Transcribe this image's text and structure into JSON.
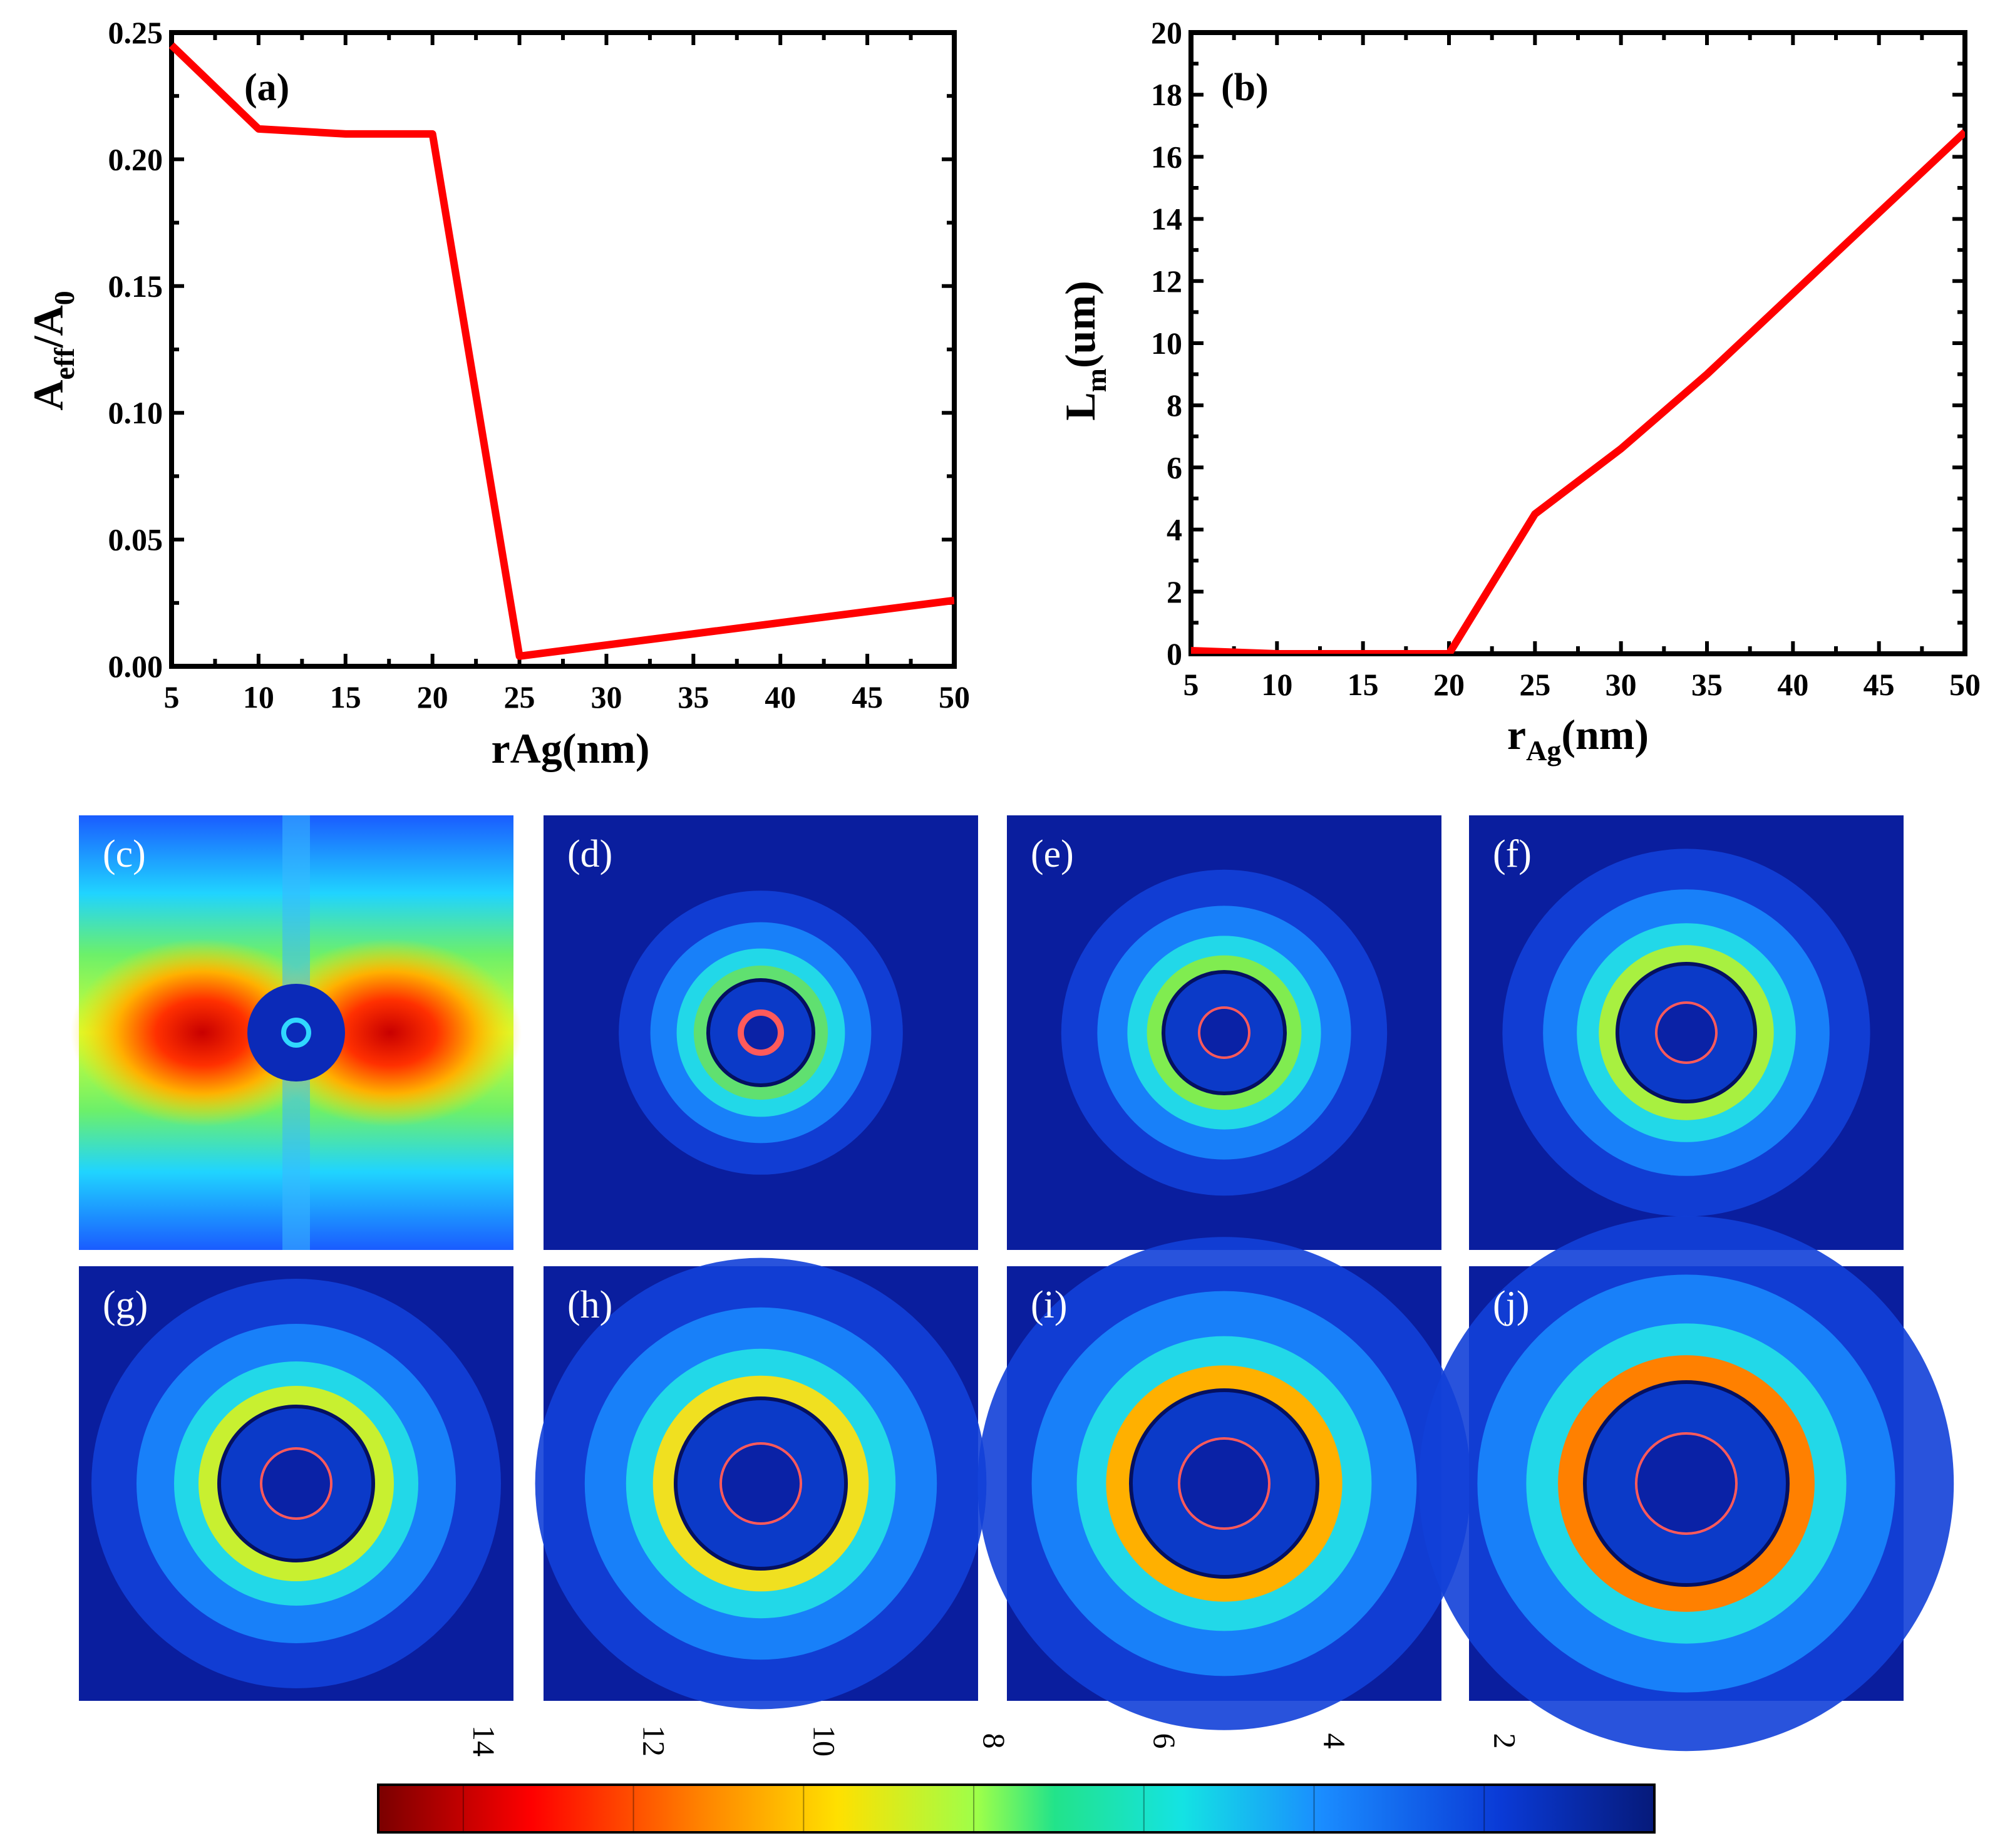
{
  "colors": {
    "series": "#ff0000",
    "axis": "#000000",
    "map_background": "#0a1e9e"
  },
  "chart_data": [
    {
      "panel": "(a)",
      "type": "line",
      "title": "",
      "xlabel": "rAg(nm)",
      "ylabel_main": "A",
      "ylabel_sub": "eff",
      "ylabel_rest": "/A",
      "ylabel_sub2": "0",
      "xlim": [
        5,
        50
      ],
      "ylim": [
        0,
        0.25
      ],
      "xticks": [
        5,
        10,
        15,
        20,
        25,
        30,
        35,
        40,
        45,
        50
      ],
      "yticks": [
        0,
        0.05,
        0.1,
        0.15,
        0.2,
        0.25
      ],
      "xtick_labels": [
        "5",
        "10",
        "15",
        "20",
        "25",
        "30",
        "35",
        "40",
        "45",
        "50"
      ],
      "ytick_labels": [
        "0.00",
        "0.05",
        "0.10",
        "0.15",
        "0.20",
        "0.25"
      ],
      "series": [
        {
          "name": "Aeff/A0",
          "x": [
            5,
            10,
            15,
            20,
            25,
            50
          ],
          "y": [
            0.245,
            0.212,
            0.21,
            0.21,
            0.004,
            0.026
          ]
        }
      ]
    },
    {
      "panel": "(b)",
      "type": "line",
      "title": "",
      "xlabel_main": "r",
      "xlabel_sub": "Ag",
      "xlabel_rest": "(nm)",
      "ylabel_main": "L",
      "ylabel_sub": "m",
      "ylabel_rest": "(um)",
      "xlim": [
        5,
        50
      ],
      "ylim": [
        0,
        20
      ],
      "xticks": [
        5,
        10,
        15,
        20,
        25,
        30,
        35,
        40,
        45,
        50
      ],
      "yticks": [
        0,
        2,
        4,
        6,
        8,
        10,
        12,
        14,
        16,
        18,
        20
      ],
      "xtick_labels": [
        "5",
        "10",
        "15",
        "20",
        "25",
        "30",
        "35",
        "40",
        "45",
        "50"
      ],
      "ytick_labels": [
        "0",
        "2",
        "4",
        "6",
        "8",
        "10",
        "12",
        "14",
        "16",
        "18",
        "20"
      ],
      "series": [
        {
          "name": "Lm",
          "x": [
            5,
            10,
            15,
            20,
            25,
            30,
            35,
            40,
            45,
            50
          ],
          "y": [
            0.1,
            0,
            0,
            0,
            4.5,
            6.6,
            9.0,
            11.6,
            14.2,
            16.8
          ]
        }
      ]
    },
    {
      "type": "heatmap",
      "panels": [
        {
          "label": "(c)",
          "mode": "dipole"
        },
        {
          "label": "(d)",
          "mode": "ring"
        },
        {
          "label": "(e)",
          "mode": "ring"
        },
        {
          "label": "(f)",
          "mode": "ring"
        },
        {
          "label": "(g)",
          "mode": "ring"
        },
        {
          "label": "(h)",
          "mode": "ring"
        },
        {
          "label": "(i)",
          "mode": "ring"
        },
        {
          "label": "(j)",
          "mode": "ring"
        }
      ],
      "colorbar": {
        "ticks": [
          14,
          12,
          10,
          8,
          6,
          4,
          2
        ],
        "tick_labels": [
          "14",
          "12",
          "10",
          "8",
          "6",
          "4",
          "2"
        ],
        "range": [
          0,
          15
        ]
      }
    }
  ]
}
